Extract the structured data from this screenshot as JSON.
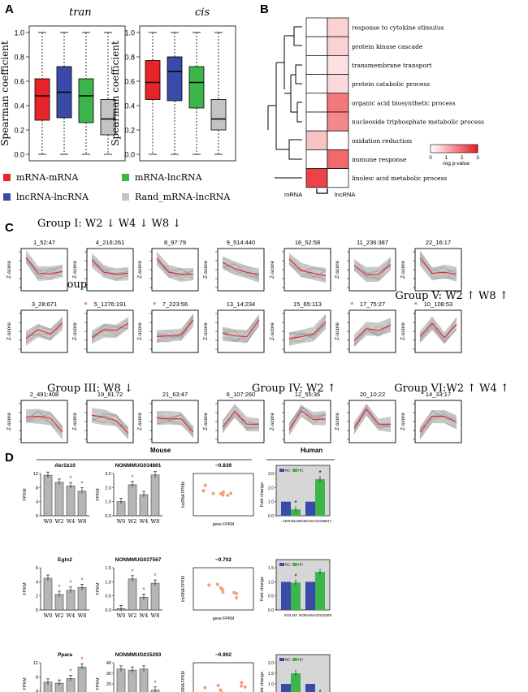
{
  "panel_labels": {
    "a": "A",
    "b": "B",
    "c": "C",
    "d": "D"
  },
  "panel_a": {
    "y_label": "Spearman coefficient",
    "y_ticks": [
      "0.0",
      "0.2",
      "0.4",
      "0.6",
      "0.8",
      "1.0"
    ],
    "legend": [
      {
        "label": "mRNA-mRNA",
        "color": "#e8232a"
      },
      {
        "label": "mRNA-lncRNA",
        "color": "#3cb54a"
      },
      {
        "label": "lncRNA-lncRNA",
        "color": "#3a4aa8"
      },
      {
        "label": "Rand_mRNA-lncRNA",
        "color": "#c4c4c4"
      }
    ]
  },
  "panel_b": {
    "terms": [
      "response to cytokine stimulus",
      "protein kinase cascade",
      "transmembrane transport",
      "protein catabolic process",
      "organic acid biosynthetic process",
      "nucleoside triphosphate metabolic process",
      "oxidation reduction",
      "immune response",
      "linoleic acid metabolic process"
    ],
    "columns": [
      "mRNA",
      "lncRNA"
    ],
    "values": [
      [
        0,
        0.6
      ],
      [
        0,
        0.6
      ],
      [
        0,
        0.4
      ],
      [
        0,
        0.5
      ],
      [
        0,
        1.8
      ],
      [
        0,
        1.6
      ],
      [
        0.8,
        0
      ],
      [
        0,
        2.0
      ],
      [
        2.5,
        0
      ]
    ],
    "scale_ticks": [
      "0",
      "1",
      "2",
      "3"
    ],
    "scale_label": "-log p-value"
  },
  "panel_c": {
    "groups": [
      {
        "label": "Group I:  W2 ↓  W4 ↓  W8 ↓"
      },
      {
        "label": "Group II:  W8 ↑"
      },
      {
        "label": "Group III:  W8 ↓"
      },
      {
        "label": "Group IV:  W2 ↑"
      },
      {
        "label": "Group V:  W2 ↑ W8 ↑"
      },
      {
        "label": "Group VI:W2 ↑ W4 ↑"
      }
    ],
    "y_axis_label": "Z-score",
    "asterisk": "*",
    "clusters": [
      {
        "title": "1_52:47",
        "star": false,
        "mean": [
          1.4,
          -0.4,
          -0.5,
          -0.2
        ]
      },
      {
        "title": "4_216:261",
        "star": false,
        "mean": [
          1.1,
          -0.3,
          -0.5,
          -0.4
        ]
      },
      {
        "title": "8_97:79",
        "star": false,
        "mean": [
          1.3,
          -0.3,
          -0.5,
          -0.5
        ]
      },
      {
        "title": "9_514:440",
        "star": false,
        "mean": [
          0.8,
          0.1,
          -0.3,
          -0.6
        ]
      },
      {
        "title": "16_52:58",
        "star": false,
        "mean": [
          1.2,
          -0.1,
          -0.4,
          -0.7
        ]
      },
      {
        "title": "11_236:387",
        "star": false,
        "mean": [
          0.5,
          -0.6,
          -0.5,
          0.6
        ]
      },
      {
        "title": "22_16:17",
        "star": false,
        "mean": [
          1.3,
          -0.4,
          -0.3,
          -0.5
        ]
      },
      {
        "title": "3_28:671",
        "star": false,
        "mean": [
          -0.8,
          0.2,
          -0.3,
          0.9
        ]
      },
      {
        "title": "5_1276:191",
        "star": true,
        "mean": [
          -0.7,
          0.2,
          0.1,
          0.9
        ]
      },
      {
        "title": "7_223:56",
        "star": true,
        "mean": [
          -0.6,
          -0.5,
          -0.4,
          1.3
        ]
      },
      {
        "title": "13_14:234",
        "star": false,
        "mean": [
          -0.2,
          -0.5,
          -0.6,
          1.3
        ]
      },
      {
        "title": "15_65:113",
        "star": false,
        "mean": [
          -0.8,
          -0.6,
          -0.3,
          1.1
        ]
      },
      {
        "title": "17_75:27",
        "star": true,
        "mean": [
          -1.0,
          0.3,
          0.1,
          0.7
        ]
      },
      {
        "title": "10_108:53",
        "star": true,
        "mean": [
          -0.6,
          0.9,
          -0.7,
          0.8
        ]
      },
      {
        "title": "2_491:408",
        "star": false,
        "mean": [
          0.5,
          0.6,
          0.4,
          -1.2
        ]
      },
      {
        "title": "19_81:72",
        "star": false,
        "mean": [
          0.7,
          0.5,
          0.1,
          -1.3
        ]
      },
      {
        "title": "21_63:47",
        "star": false,
        "mean": [
          0.4,
          0.3,
          0.3,
          -1.2
        ]
      },
      {
        "title": "6_107:260",
        "star": false,
        "mean": [
          -0.6,
          1.1,
          -0.3,
          -0.3
        ]
      },
      {
        "title": "12_55:36",
        "star": false,
        "mean": [
          -0.9,
          1.2,
          0.2,
          0.3
        ]
      },
      {
        "title": "20_10:22",
        "star": false,
        "mean": [
          -0.8,
          1.4,
          -0.3,
          -0.3
        ]
      },
      {
        "title": "14_33:17",
        "star": false,
        "mean": [
          -1.2,
          0.6,
          0.6,
          -0.1
        ]
      }
    ]
  },
  "panel_d": {
    "mouse_header": "Mouse",
    "human_header": "Human",
    "fpkm_label": "FPKM",
    "timepoints": [
      "W0",
      "W2",
      "W4",
      "W8"
    ],
    "gene_axis": "gene FPKM",
    "lnc_axis": "lncRNA FPKM",
    "fold_label": "Fold change",
    "nc_label": "NC",
    "hc_label": "HC",
    "rows": [
      {
        "gene": "Akr1b10",
        "gene_values": [
          11.5,
          9.5,
          8.5,
          7.0
        ],
        "gene_yticks": [
          "0",
          "4",
          "8",
          "12"
        ],
        "gene_stars": [
          false,
          false,
          true,
          true
        ],
        "lnc": "NONMMUG034891",
        "lnc_values": [
          1.0,
          2.2,
          1.5,
          2.9
        ],
        "lnc_yticks": [
          "0.0",
          "1.0",
          "2.0",
          "3.0"
        ],
        "lnc_stars": [
          false,
          true,
          false,
          true
        ],
        "corr": "−0.839",
        "human_genes": [
          "AKR1B10",
          "NONHSAG048817"
        ],
        "human_nc": [
          1.0,
          1.0
        ],
        "human_hc": [
          0.45,
          2.6
        ],
        "human_yticks": [
          "0.0",
          "1.0",
          "2.0",
          "3.0"
        ],
        "human_stars": [
          true,
          true
        ]
      },
      {
        "gene": "Egln2",
        "gene_values": [
          4.5,
          2.2,
          2.8,
          3.2
        ],
        "gene_yticks": [
          "0",
          "2",
          "4",
          "6"
        ],
        "gene_stars": [
          false,
          true,
          true,
          true
        ],
        "lnc": "NONMMUG037567",
        "lnc_values": [
          0.05,
          1.1,
          0.45,
          0.95
        ],
        "lnc_yticks": [
          "0.0",
          "0.5",
          "1.0",
          "1.5"
        ],
        "lnc_stars": [
          false,
          true,
          true,
          true
        ],
        "corr": "−0.702",
        "human_genes": [
          "EGLN2",
          "NONHSAG023305"
        ],
        "human_nc": [
          1.0,
          1.0
        ],
        "human_hc": [
          0.97,
          1.35
        ],
        "human_yticks": [
          "0.0",
          "0.5",
          "1.0",
          "1.5"
        ],
        "human_stars": [
          true,
          false
        ]
      },
      {
        "gene": "Ppara",
        "gene_values": [
          6.5,
          6.2,
          7.5,
          10.8
        ],
        "gene_yticks": [
          "0",
          "4",
          "8",
          "12"
        ],
        "gene_stars": [
          false,
          false,
          true,
          true
        ],
        "lnc": "NONMMUG015293",
        "lnc_values": [
          34,
          33,
          34,
          14
        ],
        "lnc_yticks": [
          "0",
          "10",
          "20",
          "30",
          "40"
        ],
        "lnc_stars": [
          false,
          false,
          false,
          true
        ],
        "corr": "−0.902",
        "human_genes": [
          "PPARA",
          "NONHSAG020111"
        ],
        "human_nc": [
          1.0,
          1.0
        ],
        "human_hc": [
          1.5,
          0.3
        ],
        "human_yticks": [
          "0.0",
          "0.5",
          "1.0",
          "1.5",
          "2.0"
        ],
        "human_stars": [
          false,
          true
        ]
      }
    ]
  }
}
